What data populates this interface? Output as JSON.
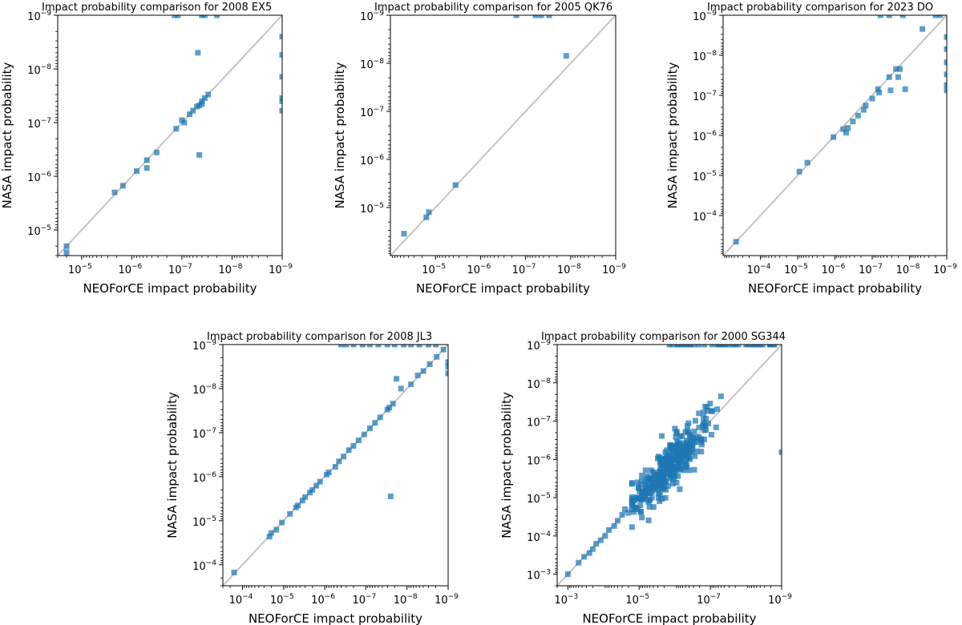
{
  "chart_data": [
    {
      "type": "scatter",
      "title": "Impact probability comparison for 2008 EX5",
      "xlabel": "NEOForCE impact probability",
      "ylabel": "NASA impact probability",
      "xscale": "log",
      "yscale": "log",
      "axis_inverted": true,
      "xlim": [
        "3e-5",
        "1e-9"
      ],
      "ylim": [
        "3e-5",
        "1e-9"
      ],
      "xticks": [
        {
          "base": "10",
          "exp": "−5",
          "value": "1e-5"
        },
        {
          "base": "10",
          "exp": "−6",
          "value": "1e-6"
        },
        {
          "base": "10",
          "exp": "−7",
          "value": "1e-7"
        },
        {
          "base": "10",
          "exp": "−8",
          "value": "1e-8"
        },
        {
          "base": "10",
          "exp": "−9",
          "value": "1e-9"
        }
      ],
      "yticks": [
        {
          "base": "10",
          "exp": "−5",
          "value": "1e-5"
        },
        {
          "base": "10",
          "exp": "−6",
          "value": "1e-6"
        },
        {
          "base": "10",
          "exp": "−7",
          "value": "1e-7"
        },
        {
          "base": "10",
          "exp": "−8",
          "value": "1e-8"
        },
        {
          "base": "10",
          "exp": "−9",
          "value": "1e-9"
        }
      ],
      "points": [
        [
          "2.0e-5",
          "2.0e-5"
        ],
        [
          "2.0e-5",
          "2.6e-5"
        ],
        [
          "2.2e-6",
          "2.0e-6"
        ],
        [
          "1.5e-6",
          "1.5e-6"
        ],
        [
          "8e-7",
          "8e-7"
        ],
        [
          "5e-7",
          "7e-7"
        ],
        [
          "5e-7",
          "5e-7"
        ],
        [
          "3.2e-7",
          "3.6e-7"
        ],
        [
          "1.3e-7",
          "1.3e-7"
        ],
        [
          "9e-8",
          "1.0e-7"
        ],
        [
          "1e-7",
          "9e-8"
        ],
        [
          "7e-8",
          "7e-8"
        ],
        [
          "6e-8",
          "6e-8"
        ],
        [
          "5e-8",
          "5e-8"
        ],
        [
          "4.0e-8",
          "4.0e-8"
        ],
        [
          "4e-8",
          "4.5e-8"
        ],
        [
          "3.5e-8",
          "3.5e-8"
        ],
        [
          "3e-8",
          "3e-8"
        ],
        [
          "4.5e-8",
          "4.8e-8"
        ],
        [
          "4.5e-8",
          "4e-7"
        ],
        [
          "4.8e-8",
          "5.0e-9"
        ],
        [
          "1.4e-7",
          "1e-9"
        ],
        [
          "1.2e-7",
          "1e-9"
        ],
        [
          "4e-8",
          "1e-9"
        ],
        [
          "3.5e-8",
          "1e-9"
        ],
        [
          "2e-8",
          "1e-9"
        ],
        [
          "1e-9",
          "2.5e-9"
        ],
        [
          "1e-9",
          "5.5e-9"
        ],
        [
          "1e-9",
          "1.4e-8"
        ],
        [
          "1e-9",
          "3.5e-8"
        ],
        [
          "1e-9",
          "4e-8"
        ],
        [
          "1e-9",
          "6e-8"
        ]
      ]
    },
    {
      "type": "scatter",
      "title": "Impact probability comparison for 2005 QK76",
      "xlabel": "NEOForCE impact probability",
      "ylabel": "NASA impact probability",
      "xscale": "log",
      "yscale": "log",
      "axis_inverted": true,
      "xlim": [
        "1e-4",
        "1e-9"
      ],
      "ylim": [
        "1e-4",
        "1e-9"
      ],
      "xticks": [
        {
          "base": "10",
          "exp": "−5",
          "value": "1e-5"
        },
        {
          "base": "10",
          "exp": "−6",
          "value": "1e-6"
        },
        {
          "base": "10",
          "exp": "−7",
          "value": "1e-7"
        },
        {
          "base": "10",
          "exp": "−8",
          "value": "1e-8"
        },
        {
          "base": "10",
          "exp": "−9",
          "value": "1e-9"
        }
      ],
      "yticks": [
        {
          "base": "10",
          "exp": "−5",
          "value": "1e-5"
        },
        {
          "base": "10",
          "exp": "−6",
          "value": "1e-6"
        },
        {
          "base": "10",
          "exp": "−7",
          "value": "1e-7"
        },
        {
          "base": "10",
          "exp": "−8",
          "value": "1e-8"
        },
        {
          "base": "10",
          "exp": "−9",
          "value": "1e-9"
        }
      ],
      "points": [
        [
          "5e-5",
          "3.5e-5"
        ],
        [
          "1.6e-5",
          "1.6e-5"
        ],
        [
          "1.4e-5",
          "1.25e-5"
        ],
        [
          "3.6e-6",
          "3.4e-6"
        ],
        [
          "1.25e-8",
          "7e-9"
        ],
        [
          "1.6e-7",
          "1e-9"
        ],
        [
          "6e-8",
          "1e-9"
        ],
        [
          "4.5e-8",
          "1e-9"
        ],
        [
          "3e-8",
          "1e-9"
        ]
      ]
    },
    {
      "type": "scatter",
      "title": "Impact probability comparison for 2023 DO",
      "xlabel": "NEOForCE impact probability",
      "ylabel": "NASA impact probability",
      "xscale": "log",
      "yscale": "log",
      "axis_inverted": true,
      "xlim": [
        "1e-3",
        "1e-9"
      ],
      "ylim": [
        "1e-3",
        "1e-9"
      ],
      "xticks": [
        {
          "base": "10",
          "exp": "−4",
          "value": "1e-4"
        },
        {
          "base": "10",
          "exp": "−5",
          "value": "1e-5"
        },
        {
          "base": "10",
          "exp": "−6",
          "value": "1e-6"
        },
        {
          "base": "10",
          "exp": "−7",
          "value": "1e-7"
        },
        {
          "base": "10",
          "exp": "−8",
          "value": "1e-8"
        },
        {
          "base": "10",
          "exp": "−9",
          "value": "1e-9"
        }
      ],
      "yticks": [
        {
          "base": "10",
          "exp": "−4",
          "value": "1e-4"
        },
        {
          "base": "10",
          "exp": "−5",
          "value": "1e-5"
        },
        {
          "base": "10",
          "exp": "−6",
          "value": "1e-6"
        },
        {
          "base": "10",
          "exp": "−7",
          "value": "1e-7"
        },
        {
          "base": "10",
          "exp": "−8",
          "value": "1e-8"
        },
        {
          "base": "10",
          "exp": "−9",
          "value": "1e-9"
        }
      ],
      "points": [
        [
          "4.5e-4",
          "4.5e-4"
        ],
        [
          "9e-6",
          "8e-6"
        ],
        [
          "5.5e-6",
          "4.8e-6"
        ],
        [
          "1.1e-6",
          "1.1e-6"
        ],
        [
          "6e-7",
          "7e-7"
        ],
        [
          "5e-7",
          "8.5e-7"
        ],
        [
          "4.5e-7",
          "6.5e-7"
        ],
        [
          "3.3e-7",
          "4.5e-7"
        ],
        [
          "2.4e-7",
          "3.2e-7"
        ],
        [
          "1.7e-7",
          "2.3e-7"
        ],
        [
          "1.5e-7",
          "1.8e-7"
        ],
        [
          "1e-7",
          "1.2e-7"
        ],
        [
          "7e-8",
          "7e-8"
        ],
        [
          "6.5e-8",
          "8.5e-8"
        ],
        [
          "3.5e-8",
          "3.5e-8"
        ],
        [
          "3.2e-8",
          "7.5e-8"
        ],
        [
          "2.3e-8",
          "2.2e-8"
        ],
        [
          "2.0e-8",
          "3.5e-8"
        ],
        [
          "1.8e-8",
          "2.2e-8"
        ],
        [
          "1.3e-8",
          "7e-8"
        ],
        [
          "4.5e-9",
          "2.2e-9"
        ],
        [
          "6e-8",
          "1e-9"
        ],
        [
          "3.5e-8",
          "1e-9"
        ],
        [
          "1.5e-8",
          "1e-9"
        ],
        [
          "2e-9",
          "1e-9"
        ],
        [
          "1.5e-9",
          "1e-9"
        ],
        [
          "1e-9",
          "3.5e-9"
        ],
        [
          "1e-9",
          "7e-9"
        ],
        [
          "1e-9",
          "1.5e-8"
        ],
        [
          "1e-9",
          "3e-8"
        ],
        [
          "1e-9",
          "5.5e-8"
        ],
        [
          "1e-9",
          "7.5e-8"
        ]
      ]
    },
    {
      "type": "scatter",
      "title": "Impact probability comparison for 2008 JL3",
      "xlabel": "NEOForCE impact probability",
      "ylabel": "NASA impact probability",
      "xscale": "log",
      "yscale": "log",
      "axis_inverted": true,
      "xlim": [
        "3e-4",
        "1e-9"
      ],
      "ylim": [
        "3e-4",
        "1e-9"
      ],
      "xticks": [
        {
          "base": "10",
          "exp": "−4",
          "value": "1e-4"
        },
        {
          "base": "10",
          "exp": "−5",
          "value": "1e-5"
        },
        {
          "base": "10",
          "exp": "−6",
          "value": "1e-6"
        },
        {
          "base": "10",
          "exp": "−7",
          "value": "1e-7"
        },
        {
          "base": "10",
          "exp": "−8",
          "value": "1e-8"
        },
        {
          "base": "10",
          "exp": "−9",
          "value": "1e-9"
        }
      ],
      "yticks": [
        {
          "base": "10",
          "exp": "−4",
          "value": "1e-4"
        },
        {
          "base": "10",
          "exp": "−5",
          "value": "1e-5"
        },
        {
          "base": "10",
          "exp": "−6",
          "value": "1e-6"
        },
        {
          "base": "10",
          "exp": "−7",
          "value": "1e-7"
        },
        {
          "base": "10",
          "exp": "−8",
          "value": "1e-8"
        },
        {
          "base": "10",
          "exp": "−9",
          "value": "1e-9"
        }
      ],
      "points": [
        [
          "1.6e-4",
          "1.5e-4"
        ],
        [
          "2.2e-5",
          "2.3e-5"
        ],
        [
          "2.0e-5",
          "1.9e-5"
        ],
        [
          "1.5e-5",
          "1.6e-5"
        ],
        [
          "1.1e-5",
          "1.1e-5"
        ],
        [
          "7e-6",
          "7e-6"
        ],
        [
          "5e-6",
          "5e-6"
        ],
        [
          "4.5e-6",
          "4.5e-6"
        ],
        [
          "3.5e-6",
          "3.5e-6"
        ],
        [
          "3e-6",
          "2.9e-6"
        ],
        [
          "2.3e-6",
          "2.3e-6"
        ],
        [
          "2e-6",
          "2e-6"
        ],
        [
          "1.6e-6",
          "1.6e-6"
        ],
        [
          "1.3e-6",
          "1.3e-6"
        ],
        [
          "9e-7",
          "9e-7"
        ],
        [
          "8e-7",
          "8e-7"
        ],
        [
          "5.5e-7",
          "6e-7"
        ],
        [
          "4.5e-7",
          "4.5e-7"
        ],
        [
          "3.5e-7",
          "3.5e-7"
        ],
        [
          "2.6e-7",
          "2.5e-7"
        ],
        [
          "2.0e-7",
          "2.0e-7"
        ],
        [
          "1.5e-7",
          "1.5e-7"
        ],
        [
          "1.1e-7",
          "1.1e-7"
        ],
        [
          "8e-8",
          "8e-8"
        ],
        [
          "6e-8",
          "6e-8"
        ],
        [
          "4.5e-8",
          "4.5e-8"
        ],
        [
          "3e-8",
          "3e-8"
        ],
        [
          "2.7e-8",
          "2.7e-8"
        ],
        [
          "2.2e-8",
          "2.2e-8"
        ],
        [
          "2.5e-8",
          "2.8e-6"
        ],
        [
          "1.8e-8",
          "6e-9"
        ],
        [
          "1.4e-8",
          "1.0e-8"
        ],
        [
          "8e-9",
          "8e-9"
        ],
        [
          "5.5e-9",
          "5e-9"
        ],
        [
          "4e-9",
          "4e-9"
        ],
        [
          "2.8e-9",
          "2.8e-9"
        ],
        [
          "1.9e-9",
          "1.9e-9"
        ],
        [
          "1.3e-9",
          "1.3e-9"
        ],
        [
          "4e-7",
          "1e-9"
        ],
        [
          "3e-7",
          "1e-9"
        ],
        [
          "2e-7",
          "1e-9"
        ],
        [
          "1.2e-7",
          "1e-9"
        ],
        [
          "8e-8",
          "1e-9"
        ],
        [
          "5e-8",
          "1e-9"
        ],
        [
          "3e-8",
          "1e-9"
        ],
        [
          "2e-8",
          "1e-9"
        ],
        [
          "1.2e-8",
          "1e-9"
        ],
        [
          "8e-9",
          "1e-9"
        ],
        [
          "5e-9",
          "1e-9"
        ],
        [
          "3e-9",
          "1e-9"
        ],
        [
          "2e-9",
          "1e-9"
        ],
        [
          "1e-9",
          "2.5e-9"
        ],
        [
          "1e-9",
          "3.2e-9"
        ],
        [
          "1e-9",
          "4.5e-9"
        ]
      ]
    },
    {
      "type": "scatter",
      "title": "Impact probability comparison for 2000 SG344",
      "xlabel": "NEOForCE impact probability",
      "ylabel": "NASA impact probability",
      "xscale": "log",
      "yscale": "log",
      "axis_inverted": true,
      "xlim": [
        "2e-3",
        "1e-9"
      ],
      "ylim": [
        "2e-3",
        "1e-9"
      ],
      "xticks": [
        {
          "base": "10",
          "exp": "−3",
          "value": "1e-3"
        },
        {
          "base": "10",
          "exp": "−5",
          "value": "1e-5"
        },
        {
          "base": "10",
          "exp": "−7",
          "value": "1e-7"
        },
        {
          "base": "10",
          "exp": "−9",
          "value": "1e-9"
        }
      ],
      "yticks": [
        {
          "base": "10",
          "exp": "−3",
          "value": "1e-3"
        },
        {
          "base": "10",
          "exp": "−4",
          "value": "1e-4"
        },
        {
          "base": "10",
          "exp": "−5",
          "value": "1e-5"
        },
        {
          "base": "10",
          "exp": "−6",
          "value": "1e-6"
        },
        {
          "base": "10",
          "exp": "−7",
          "value": "1e-7"
        },
        {
          "base": "10",
          "exp": "−8",
          "value": "1e-8"
        },
        {
          "base": "10",
          "exp": "−9",
          "value": "1e-9"
        }
      ],
      "points_note": "dense cloud of several hundred points along y = x between 1e-3 and ~1e-8; additional points clipped at the 1e-9 top edge",
      "points": [
        [
          "1e-3",
          "1e-3"
        ],
        [
          "5e-4",
          "5e-4"
        ],
        [
          "3.5e-4",
          "3.5e-4"
        ],
        [
          "2.5e-4",
          "2.8e-4"
        ],
        [
          "2e-4",
          "2.2e-4"
        ],
        [
          "1.6e-4",
          "1.6e-4"
        ],
        [
          "1.2e-4",
          "1.3e-4"
        ],
        [
          "9e-5",
          "1e-4"
        ],
        [
          "7e-5",
          "7e-5"
        ],
        [
          "5e-5",
          "5.5e-5"
        ],
        [
          "4e-5",
          "4e-5"
        ],
        [
          "3e-5",
          "2.8e-5"
        ],
        [
          "2.5e-5",
          "2e-5"
        ],
        [
          "2e-5",
          "2.5e-5"
        ],
        [
          "1.5e-5",
          "1.5e-5"
        ],
        [
          "1.2e-5",
          "1e-5"
        ]
      ]
    }
  ]
}
